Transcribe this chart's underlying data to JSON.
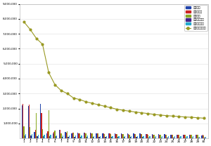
{
  "n_items": 30,
  "x_labels": [
    "1",
    "2",
    "3",
    "4",
    "5",
    "6",
    "7",
    "8",
    "9",
    "10",
    "11",
    "12",
    "13",
    "14",
    "15",
    "16",
    "17",
    "18",
    "19",
    "20",
    "21",
    "22",
    "23",
    "24",
    "25",
    "26",
    "27",
    "28",
    "29",
    "30"
  ],
  "brand_scores": [
    7800000,
    7300000,
    6700000,
    6300000,
    4400000,
    3600000,
    3200000,
    3000000,
    2700000,
    2600000,
    2450000,
    2350000,
    2250000,
    2150000,
    2050000,
    1950000,
    1880000,
    1820000,
    1760000,
    1710000,
    1660000,
    1600000,
    1560000,
    1520000,
    1490000,
    1460000,
    1430000,
    1410000,
    1380000,
    1350000
  ],
  "participation": [
    2200000,
    2150000,
    420000,
    2300000,
    350000,
    340000,
    550000,
    430000,
    350000,
    380000,
    390000,
    360000,
    340000,
    350000,
    340000,
    330000,
    330000,
    330000,
    320000,
    310000,
    300000,
    290000,
    280000,
    270000,
    260000,
    250000,
    240000,
    230000,
    220000,
    210000
  ],
  "media": [
    2300000,
    2250000,
    550000,
    1700000,
    450000,
    420000,
    580000,
    400000,
    370000,
    350000,
    380000,
    330000,
    310000,
    330000,
    310000,
    300000,
    295000,
    290000,
    280000,
    275000,
    270000,
    260000,
    255000,
    250000,
    245000,
    240000,
    235000,
    230000,
    225000,
    220000
  ],
  "spread": [
    800000,
    750000,
    1700000,
    600000,
    1900000,
    500000,
    350000,
    450000,
    400000,
    350000,
    340000,
    330000,
    350000,
    280000,
    290000,
    280000,
    270000,
    260000,
    270000,
    265000,
    258000,
    252000,
    246000,
    240000,
    235000,
    230000,
    225000,
    220000,
    215000,
    210000
  ],
  "community": [
    200000,
    180000,
    160000,
    150000,
    140000,
    130000,
    120000,
    115000,
    110000,
    105000,
    100000,
    95000,
    90000,
    88000,
    85000,
    83000,
    80000,
    78000,
    76000,
    74000,
    72000,
    70000,
    68000,
    66000,
    64000,
    62000,
    60000,
    58000,
    56000,
    54000
  ],
  "social": [
    300000,
    280000,
    260000,
    240000,
    220000,
    210000,
    200000,
    190000,
    180000,
    175000,
    170000,
    165000,
    160000,
    155000,
    150000,
    145000,
    143000,
    141000,
    139000,
    137000,
    135000,
    133000,
    131000,
    130000,
    128000,
    126000,
    124000,
    122000,
    120000,
    118000
  ],
  "bar_colors": [
    "#2244aa",
    "#cc2222",
    "#88aa22",
    "#442288",
    "#22aacc"
  ],
  "line_color": "#999922",
  "legend_labels": [
    "참여지수",
    "리더어지수",
    "소통지수",
    "커뮤니티지수",
    "사회공헌지수",
    "브랜드평판지수"
  ],
  "ylim": [
    0,
    9000000
  ],
  "yticks": [
    1000000,
    2000000,
    3000000,
    4000000,
    5000000,
    6000000,
    7000000,
    8000000,
    9000000
  ],
  "ytick_labels": [
    "1,000,000",
    "2,000,000",
    "3,000,000",
    "4,000,000",
    "5,000,000",
    "6,000,000",
    "7,000,000",
    "8,000,000",
    "9,000,000"
  ],
  "bg_color": "#ffffff"
}
